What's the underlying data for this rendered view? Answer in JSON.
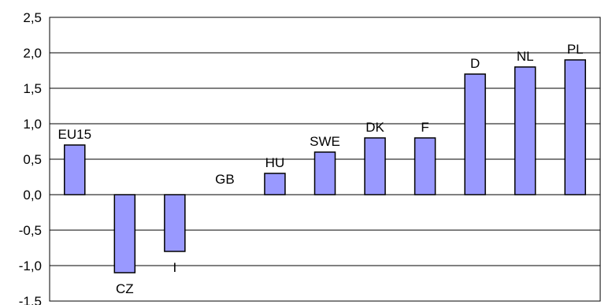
{
  "chart_data": {
    "type": "bar",
    "title": "",
    "xlabel": "",
    "ylabel": "",
    "ylim": [
      -1.5,
      2.5
    ],
    "y_ticks": [
      "2,5",
      "2,0",
      "1,5",
      "1,0",
      "0,5",
      "0,0",
      "-0,5",
      "-1,0",
      "-1,5"
    ],
    "categories": [
      "EU15",
      "CZ",
      "I",
      "GB",
      "HU",
      "SWE",
      "DK",
      "F",
      "D",
      "NL",
      "PL"
    ],
    "values": [
      0.7,
      -1.1,
      -0.8,
      0.0,
      0.3,
      0.6,
      0.8,
      0.8,
      1.7,
      1.8,
      1.9
    ],
    "grid": true,
    "legend": "none",
    "bar_color": "#9999ff",
    "bar_edge_color": "#000000"
  }
}
